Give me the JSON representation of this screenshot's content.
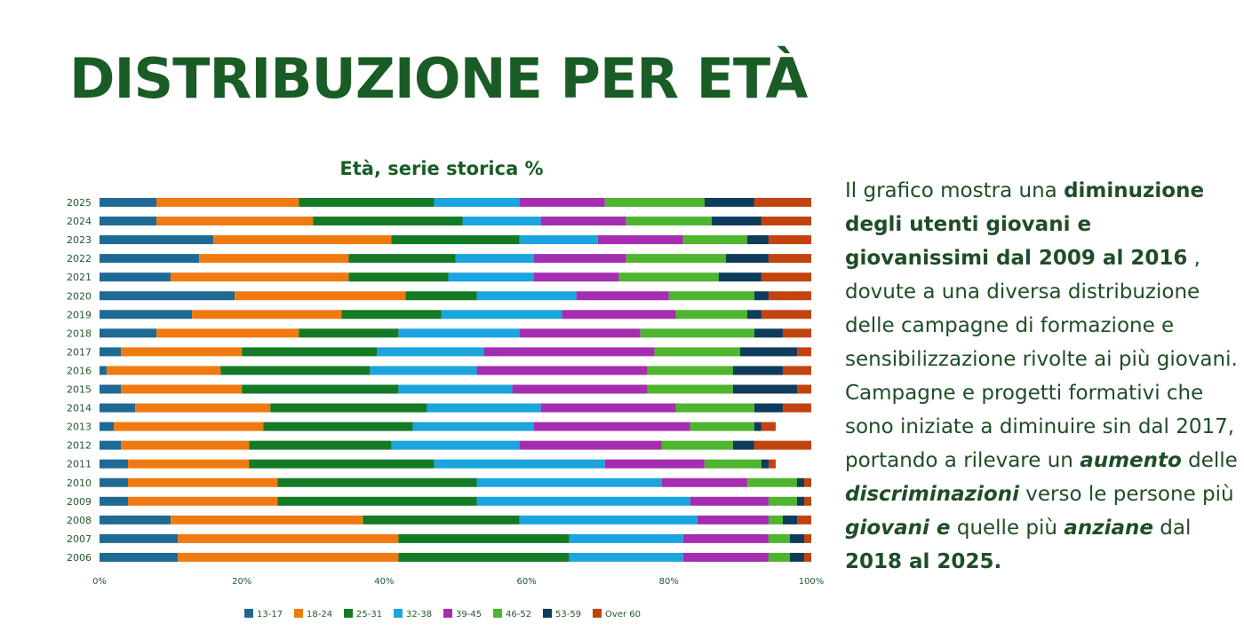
{
  "slide": {
    "title": "DISTRIBUZIONE PER ETÀ"
  },
  "text": {
    "p1": "Il grafico mostra una ",
    "b1": "diminuzione degli utenti giovani e giovanissimi dal 2009 al 2016",
    "p2": " , dovute a una diversa distribuzione delle campagne di formazione e sensibilizzazione rivolte ai più giovani. Campagne e progetti formativi che sono iniziate a diminuire sin dal 2017, portando a rilevare un ",
    "i1": "aumento",
    "p3": " delle ",
    "i2": "discriminazioni",
    "p4": " verso le persone più ",
    "i3": "giovani e",
    "p5": " quelle più ",
    "i4": "anziane",
    "p6": " dal ",
    "b2": "2018 al 2025."
  },
  "chart_data": {
    "type": "bar",
    "orientation": "horizontal",
    "stacked": true,
    "title": "Età, serie storica %",
    "xlabel": "",
    "ylabel": "",
    "xlim": [
      0,
      100
    ],
    "x_ticks": [
      "0%",
      "20%",
      "40%",
      "60%",
      "80%",
      "100%"
    ],
    "legend_position": "bottom",
    "grid": false,
    "categories": [
      "2025",
      "2024",
      "2023",
      "2022",
      "2021",
      "2020",
      "2019",
      "2018",
      "2017",
      "2016",
      "2015",
      "2014",
      "2013",
      "2012",
      "2011",
      "2010",
      "2009",
      "2008",
      "2007",
      "2006"
    ],
    "series": [
      {
        "name": "13-17",
        "color": "#1f6a94",
        "values": [
          8,
          8,
          16,
          14,
          10,
          19,
          13,
          8,
          3,
          1,
          3,
          5,
          2,
          3,
          4,
          4,
          4,
          10,
          11,
          11
        ]
      },
      {
        "name": "18-24",
        "color": "#f07a10",
        "values": [
          20,
          22,
          25,
          21,
          25,
          24,
          21,
          20,
          17,
          16,
          17,
          19,
          21,
          18,
          17,
          21,
          21,
          27,
          31,
          31
        ]
      },
      {
        "name": "25-31",
        "color": "#147a25",
        "values": [
          19,
          21,
          18,
          15,
          14,
          10,
          14,
          14,
          19,
          21,
          22,
          22,
          21,
          20,
          26,
          28,
          28,
          22,
          24,
          24
        ]
      },
      {
        "name": "32-38",
        "color": "#1ba5de",
        "values": [
          12,
          11,
          11,
          11,
          12,
          14,
          17,
          17,
          15,
          15,
          16,
          16,
          17,
          18,
          24,
          26,
          30,
          25,
          16,
          16
        ]
      },
      {
        "name": "39-45",
        "color": "#a52db0",
        "values": [
          12,
          12,
          12,
          13,
          12,
          13,
          16,
          17,
          24,
          24,
          19,
          19,
          22,
          20,
          14,
          12,
          11,
          10,
          12,
          12
        ]
      },
      {
        "name": "46-52",
        "color": "#4db52e",
        "values": [
          14,
          12,
          9,
          14,
          14,
          12,
          10,
          16,
          12,
          12,
          12,
          11,
          9,
          10,
          8,
          7,
          4,
          2,
          3,
          3
        ]
      },
      {
        "name": "53-59",
        "color": "#0f3c5c",
        "values": [
          7,
          7,
          3,
          6,
          6,
          2,
          2,
          4,
          8,
          7,
          9,
          4,
          1,
          3,
          1,
          1,
          1,
          2,
          2,
          2
        ]
      },
      {
        "name": "Over 60",
        "color": "#c2430f",
        "values": [
          8,
          7,
          6,
          6,
          7,
          6,
          7,
          4,
          2,
          4,
          2,
          4,
          2,
          8,
          1,
          1,
          1,
          2,
          1,
          1
        ]
      }
    ]
  },
  "colors": {
    "title": "#1a5c25",
    "text": "#1f4d26",
    "axis_text": "#1e5a2a"
  }
}
